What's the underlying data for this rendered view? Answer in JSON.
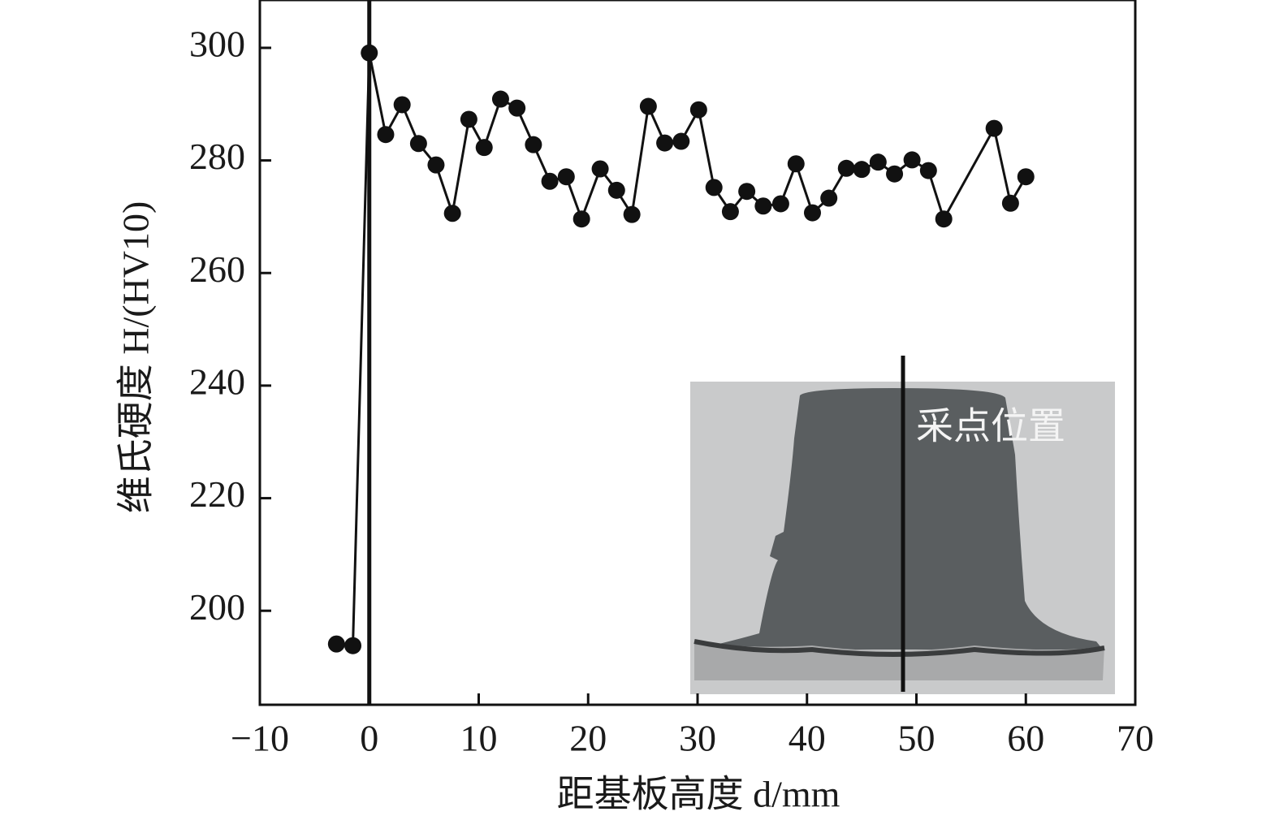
{
  "chart_data": {
    "type": "line",
    "x_label": "距基板高度 d/mm",
    "y_label": "维氏硬度 H/(HV10)",
    "annotation": "采点位置",
    "x": [
      -3,
      -1.5,
      0,
      1.5,
      3.0,
      4.5,
      6.1,
      7.6,
      9.1,
      10.5,
      12.0,
      13.5,
      15.0,
      16.5,
      18.0,
      19.4,
      21.1,
      22.6,
      24.0,
      25.5,
      27.0,
      28.5,
      30.1,
      31.5,
      33.0,
      34.5,
      36.0,
      37.6,
      39.0,
      40.5,
      42.0,
      43.6,
      45.0,
      46.5,
      48.0,
      49.6,
      51.1,
      52.5,
      57.1,
      58.6,
      60.0
    ],
    "series": [
      {
        "color": "#111111",
        "values": [
          194.1,
          193.8,
          299.1,
          284.6,
          289.9,
          283,
          279.2,
          270.6,
          287.3,
          282.3,
          290.9,
          289.3,
          282.8,
          276.3,
          277.1,
          269.6,
          278.5,
          274.7,
          270.4,
          289.6,
          283.1,
          283.4,
          289,
          275.2,
          270.9,
          274.5,
          271.9,
          272.3,
          279.4,
          270.7,
          273.3,
          278.6,
          278.4,
          279.7,
          277.6,
          280.1,
          278.2,
          269.6,
          285.7,
          272.4,
          277.1
        ]
      }
    ],
    "xlim": [
      -10,
      70
    ],
    "xticks": [
      {
        "value": -10,
        "label": "−10"
      },
      0,
      10,
      20,
      30,
      40,
      50,
      60,
      70
    ],
    "ylim": [
      183.3,
      308.5
    ],
    "yticks": [
      200,
      220,
      240,
      260,
      280,
      300
    ],
    "grid": false
  }
}
